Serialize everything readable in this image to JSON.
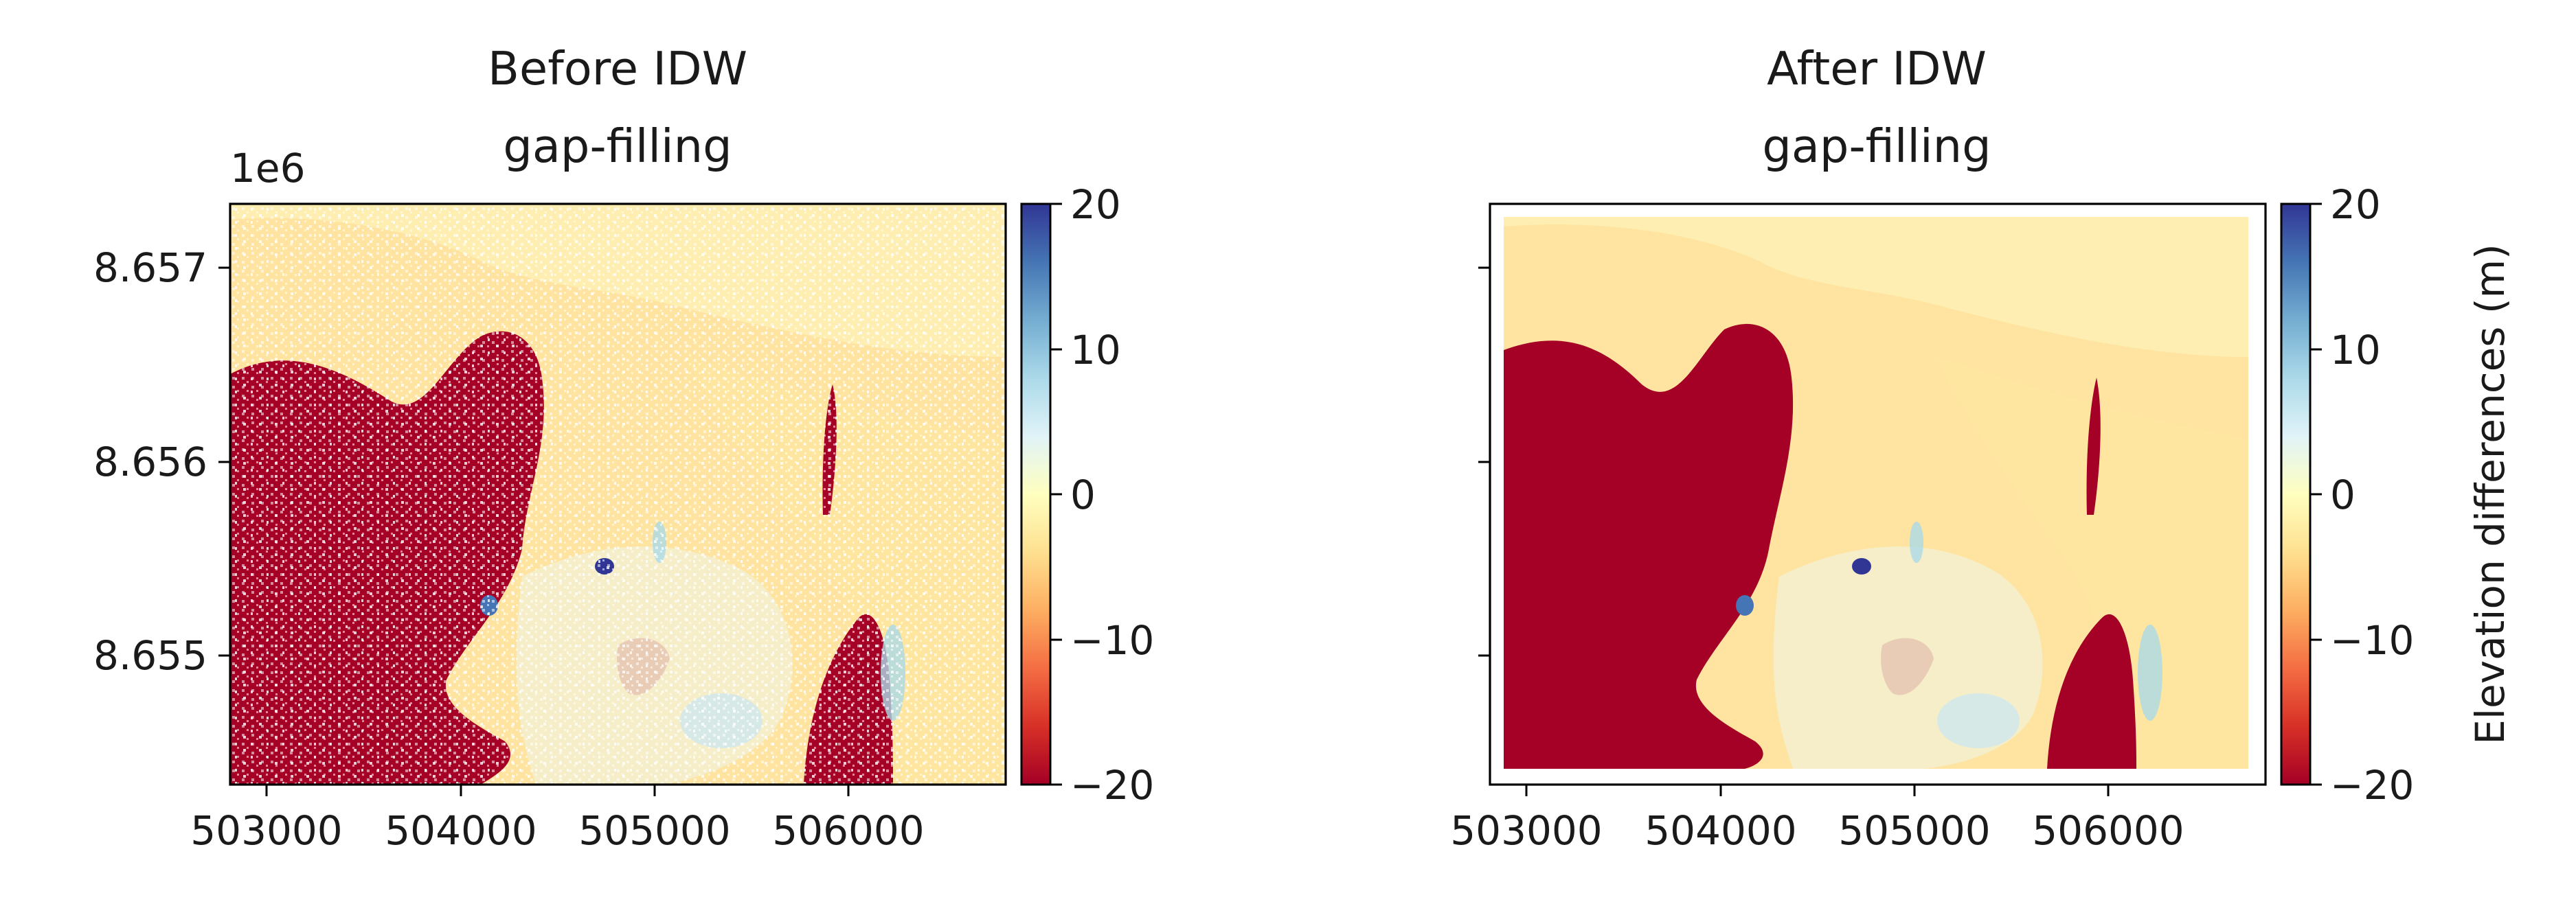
{
  "chart_data": [
    {
      "type": "heatmap",
      "title_lines": [
        "Before IDW",
        "gap-filling"
      ],
      "xlabel": "",
      "ylabel": "",
      "x_ticks": [
        "503000",
        "504000",
        "505000",
        "506000"
      ],
      "y_ticks": [
        "8.655",
        "8.656",
        "8.657"
      ],
      "y_offset_label": "1e6",
      "xlim": [
        502800,
        506800
      ],
      "ylim": [
        8654350,
        8657330
      ],
      "colormap": "RdYlBu",
      "clim": [
        -20,
        20
      ],
      "colorbar_ticks": [
        "20",
        "10",
        "0",
        "−10",
        "−20"
      ],
      "colorbar_label": "",
      "gaps": true
    },
    {
      "type": "heatmap",
      "title_lines": [
        "After IDW",
        "gap-filling"
      ],
      "xlabel": "",
      "ylabel": "",
      "x_ticks": [
        "503000",
        "504000",
        "505000",
        "506000"
      ],
      "y_ticks": [],
      "y_offset_label": "",
      "xlim": [
        502800,
        506800
      ],
      "ylim": [
        8654350,
        8657330
      ],
      "colormap": "RdYlBu",
      "clim": [
        -20,
        20
      ],
      "colorbar_ticks": [
        "20",
        "10",
        "0",
        "−10",
        "−20"
      ],
      "colorbar_label": "Elevation differences (m)",
      "gaps": false
    }
  ],
  "colors": {
    "deep_red": "#a50026",
    "cream": "#fdf6c1",
    "light_orange": "#fee4a0",
    "deep_blue": "#313695"
  }
}
